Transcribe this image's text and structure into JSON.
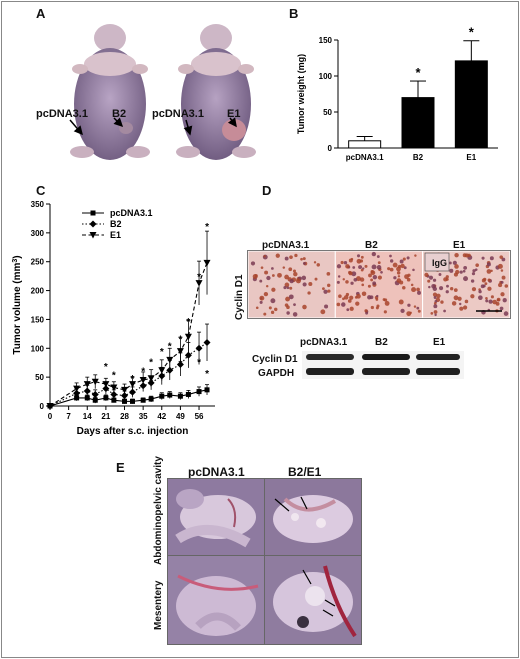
{
  "panels": {
    "a": "A",
    "b": "B",
    "c": "C",
    "d": "D",
    "e": "E"
  },
  "panel_a": {
    "left": {
      "ctrl_label": "pcDNA3.1",
      "tumor_label": "B2"
    },
    "right": {
      "ctrl_label": "pcDNA3.1",
      "tumor_label": "E1"
    }
  },
  "panel_d": {
    "cols": [
      "pcDNA3.1",
      "B2",
      "E1"
    ],
    "row_label": "Cyclin D1",
    "inset_label": "IgG",
    "wb_cols": [
      "pcDNA3.1",
      "B2",
      "E1"
    ],
    "wb_rows": [
      "Cyclin D1",
      "GAPDH"
    ]
  },
  "panel_e": {
    "cols": [
      "pcDNA3.1",
      "B2/E1"
    ],
    "rows": [
      "Abdominopelvic cavity",
      "Mesentery"
    ]
  },
  "chart_data": [
    {
      "type": "bar",
      "ylabel": "Tumor weight (mg)",
      "xlabel": "",
      "categories": [
        "pcDNA3.1",
        "B2",
        "E1"
      ],
      "values": [
        10,
        70,
        121
      ],
      "errors": [
        6,
        23,
        28
      ],
      "significance": [
        "",
        "*",
        "*"
      ],
      "ylim": [
        0,
        150
      ],
      "yticks": [
        0,
        50,
        100,
        150
      ],
      "colors": [
        "#ffffff",
        "#000000",
        "#000000"
      ]
    },
    {
      "type": "line",
      "ylabel_main": "Tumor volume (mm",
      "ylabel_sup": "3",
      "ylabel_end": ")",
      "xlabel": "Days after s.c. injection",
      "x": [
        0,
        10,
        14,
        17,
        21,
        24,
        28,
        31,
        35,
        38,
        42,
        45,
        49,
        52,
        56,
        59
      ],
      "xticks": [
        0,
        7,
        14,
        21,
        28,
        35,
        42,
        49,
        56
      ],
      "yticks": [
        0,
        50,
        100,
        150,
        200,
        250,
        300,
        350
      ],
      "xlim": [
        0,
        62
      ],
      "ylim": [
        0,
        350
      ],
      "series": [
        {
          "name": "pcDNA3.1",
          "marker": "square",
          "dash": "solid",
          "values": [
            0,
            14,
            14,
            10,
            14,
            10,
            8,
            8,
            10,
            12,
            17,
            19,
            17,
            20,
            25,
            28
          ],
          "errors": [
            0,
            5,
            5,
            5,
            5,
            4,
            4,
            4,
            4,
            5,
            6,
            6,
            6,
            7,
            8,
            9
          ]
        },
        {
          "name": "B2",
          "marker": "diamond",
          "dash": "dotted",
          "values": [
            0,
            22,
            26,
            20,
            30,
            20,
            18,
            24,
            35,
            40,
            52,
            62,
            72,
            88,
            100,
            110
          ],
          "errors": [
            0,
            8,
            10,
            8,
            10,
            8,
            8,
            9,
            10,
            12,
            15,
            17,
            20,
            22,
            28,
            32
          ]
        },
        {
          "name": "E1",
          "marker": "triangle",
          "dash": "dashed",
          "values": [
            0,
            30,
            38,
            42,
            38,
            32,
            28,
            38,
            45,
            48,
            62,
            80,
            95,
            120,
            213,
            248
          ],
          "errors": [
            0,
            10,
            12,
            12,
            10,
            10,
            10,
            12,
            14,
            15,
            18,
            20,
            24,
            28,
            38,
            55
          ]
        }
      ],
      "stars": [
        {
          "x": 21,
          "y": 62
        },
        {
          "x": 24,
          "y": 48
        },
        {
          "x": 31,
          "y": 42
        },
        {
          "x": 35,
          "y": 55
        },
        {
          "x": 38,
          "y": 70
        },
        {
          "x": 42,
          "y": 88
        },
        {
          "x": 45,
          "y": 98
        },
        {
          "x": 49,
          "y": 110
        },
        {
          "x": 52,
          "y": 140
        },
        {
          "x": 56,
          "y": 218
        },
        {
          "x": 59,
          "y": 305
        },
        {
          "x": 35,
          "y": 28
        },
        {
          "x": 38,
          "y": 35
        },
        {
          "x": 42,
          "y": 45
        },
        {
          "x": 45,
          "y": 55
        },
        {
          "x": 49,
          "y": 68
        },
        {
          "x": 52,
          "y": 78
        },
        {
          "x": 56,
          "y": 70
        },
        {
          "x": 59,
          "y": 50
        }
      ]
    }
  ]
}
